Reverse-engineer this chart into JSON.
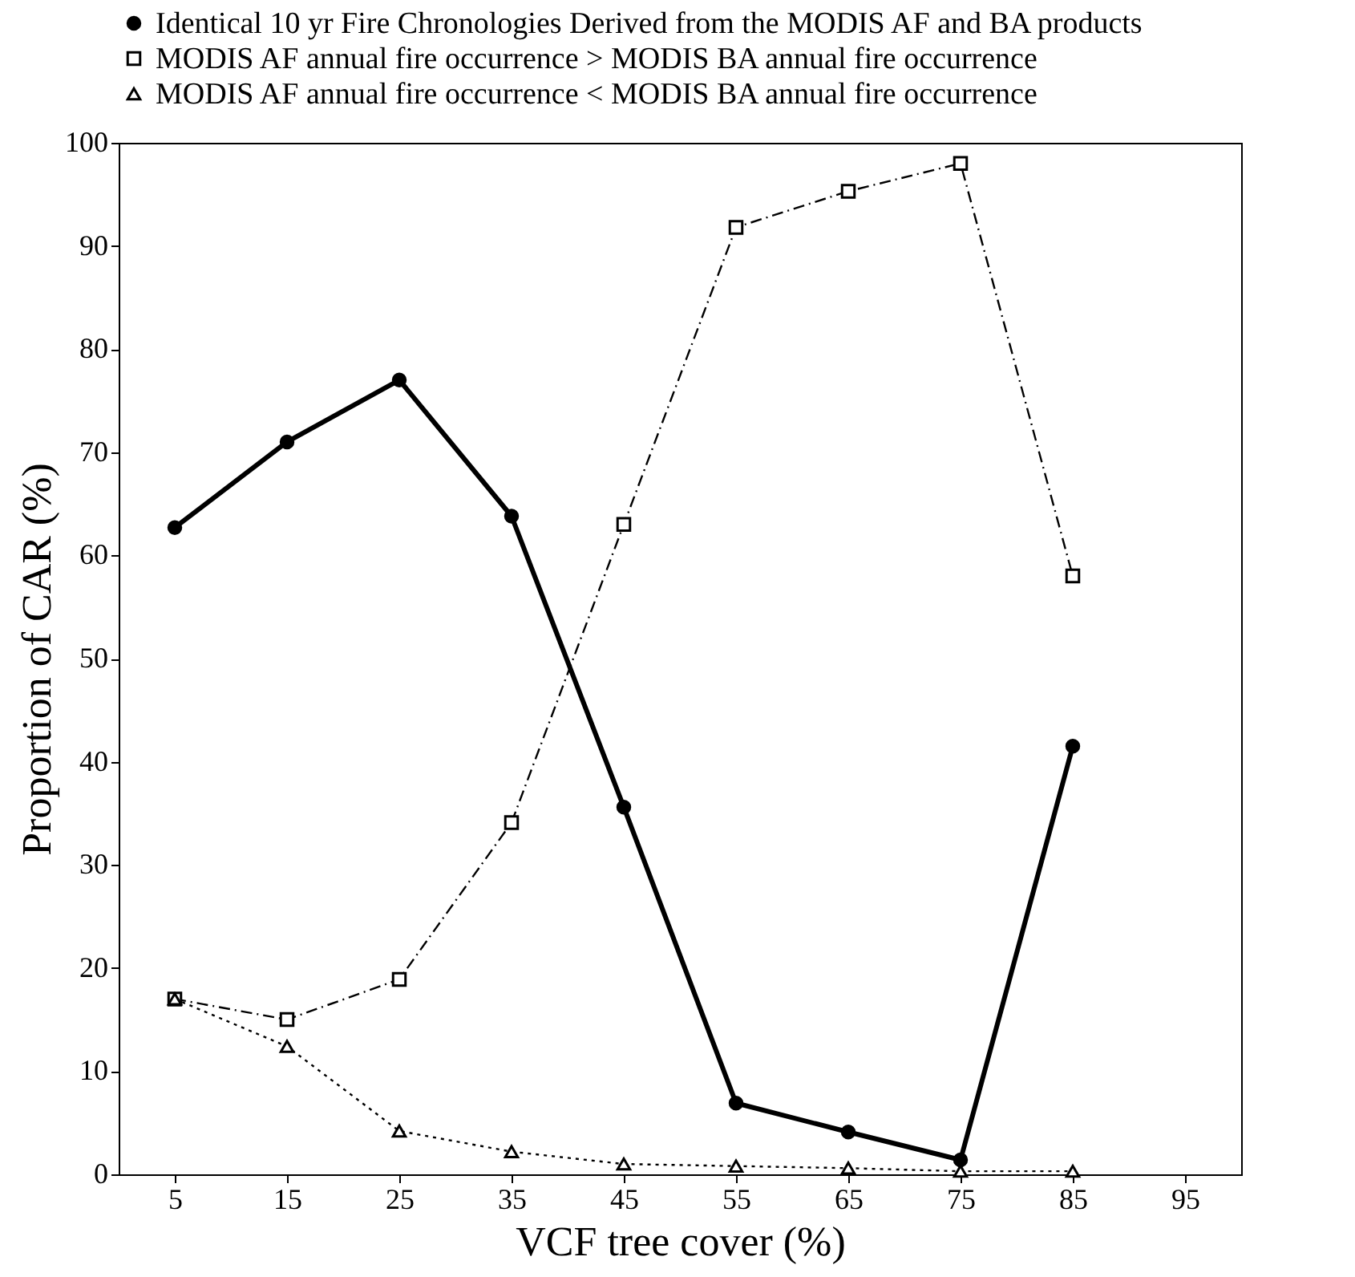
{
  "chart_data": {
    "type": "line",
    "xlabel": "VCF tree cover (%)",
    "ylabel": "Proportion of CAR (%)",
    "x": [
      5,
      15,
      25,
      35,
      45,
      55,
      65,
      75,
      85
    ],
    "xlim": [
      0,
      100
    ],
    "xticks": [
      5,
      15,
      25,
      35,
      45,
      55,
      65,
      75,
      85,
      95
    ],
    "ylim": [
      0,
      100
    ],
    "yticks": [
      0,
      10,
      20,
      30,
      40,
      50,
      60,
      70,
      80,
      90,
      100
    ],
    "grid": false,
    "legend": "top",
    "series": [
      {
        "name": "Identical 10 yr Fire Chronologies Derived from the MODIS AF and BA products",
        "color": "#000000",
        "marker": "circle",
        "line_style": "solid",
        "values": [
          62.7,
          71,
          77,
          63.8,
          35.6,
          6.9,
          4.1,
          1.4,
          41.5
        ]
      },
      {
        "name": "MODIS AF annual fire occurrence > MODIS BA annual fire occurrence",
        "color": "#000000",
        "marker": "square",
        "line_style": "dashed",
        "values": [
          17,
          15,
          18.9,
          34.1,
          63,
          91.8,
          95.3,
          98,
          58
        ]
      },
      {
        "name": "MODIS AF annual fire occurrence < MODIS BA annual fire occurrence",
        "color": "#000000",
        "marker": "triangle",
        "line_style": "dotted",
        "values": [
          17,
          12.4,
          4.2,
          2.2,
          1.0,
          0.8,
          0.6,
          0.3,
          0.3
        ]
      }
    ]
  }
}
